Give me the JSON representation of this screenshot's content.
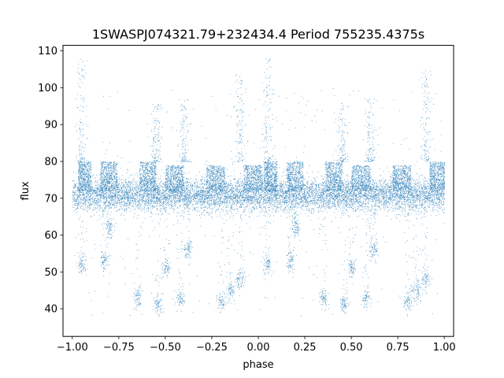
{
  "chart_data": {
    "type": "scatter",
    "title": "1SWASPJ074321.79+232434.4 Period 755235.4375s",
    "xlabel": "phase",
    "ylabel": "flux",
    "xlim": [
      -1.05,
      1.05
    ],
    "ylim": [
      32.5,
      111.5
    ],
    "xticks": [
      -1.0,
      -0.75,
      -0.5,
      -0.25,
      0.0,
      0.25,
      0.5,
      0.75,
      1.0
    ],
    "xtick_labels": [
      "−1.00",
      "−0.75",
      "−0.50",
      "−0.25",
      "0.00",
      "0.25",
      "0.50",
      "0.75",
      "1.00"
    ],
    "yticks": [
      40,
      50,
      60,
      70,
      80,
      90,
      100,
      110
    ],
    "ytick_labels": [
      "40",
      "50",
      "60",
      "70",
      "80",
      "90",
      "100",
      "110"
    ],
    "grid": false,
    "marker_color": "#1f77b4",
    "baseline_flux": 71,
    "data_range_x": [
      -1.0,
      1.0
    ],
    "bright_band_segments": [
      {
        "x": [
          -0.97,
          -0.9
        ],
        "y": [
          72,
          80
        ]
      },
      {
        "x": [
          -0.85,
          -0.76
        ],
        "y": [
          72,
          80
        ]
      },
      {
        "x": [
          -0.64,
          -0.55
        ],
        "y": [
          72,
          80
        ]
      },
      {
        "x": [
          -0.5,
          -0.4
        ],
        "y": [
          72,
          79
        ]
      },
      {
        "x": [
          -0.28,
          -0.18
        ],
        "y": [
          72,
          79
        ]
      },
      {
        "x": [
          -0.08,
          0.02
        ],
        "y": [
          72,
          79
        ]
      },
      {
        "x": [
          0.03,
          0.1
        ],
        "y": [
          72,
          80
        ]
      },
      {
        "x": [
          0.15,
          0.24
        ],
        "y": [
          72,
          80
        ]
      },
      {
        "x": [
          0.36,
          0.45
        ],
        "y": [
          72,
          80
        ]
      },
      {
        "x": [
          0.5,
          0.6
        ],
        "y": [
          72,
          79
        ]
      },
      {
        "x": [
          0.72,
          0.82
        ],
        "y": [
          72,
          79
        ]
      },
      {
        "x": [
          0.92,
          1.0
        ],
        "y": [
          72,
          80
        ]
      }
    ],
    "low_clusters": [
      {
        "x": -0.95,
        "y": 52
      },
      {
        "x": -0.83,
        "y": 53
      },
      {
        "x": -0.8,
        "y": 62
      },
      {
        "x": -0.65,
        "y": 43
      },
      {
        "x": -0.54,
        "y": 41
      },
      {
        "x": -0.5,
        "y": 51
      },
      {
        "x": -0.42,
        "y": 43
      },
      {
        "x": -0.38,
        "y": 56
      },
      {
        "x": -0.2,
        "y": 42
      },
      {
        "x": -0.15,
        "y": 45
      },
      {
        "x": -0.1,
        "y": 48
      },
      {
        "x": 0.05,
        "y": 52
      },
      {
        "x": 0.17,
        "y": 53
      },
      {
        "x": 0.2,
        "y": 62
      },
      {
        "x": 0.35,
        "y": 43
      },
      {
        "x": 0.46,
        "y": 41
      },
      {
        "x": 0.5,
        "y": 51
      },
      {
        "x": 0.58,
        "y": 43
      },
      {
        "x": 0.62,
        "y": 56
      },
      {
        "x": 0.8,
        "y": 42
      },
      {
        "x": 0.85,
        "y": 45
      },
      {
        "x": 0.9,
        "y": 48
      }
    ],
    "spike_columns": [
      {
        "x": -0.95,
        "y": [
          80,
          108
        ]
      },
      {
        "x": -0.55,
        "y": [
          80,
          96
        ]
      },
      {
        "x": -0.4,
        "y": [
          80,
          97
        ]
      },
      {
        "x": -0.1,
        "y": [
          80,
          105
        ]
      },
      {
        "x": 0.05,
        "y": [
          80,
          108
        ]
      },
      {
        "x": 0.45,
        "y": [
          80,
          96
        ]
      },
      {
        "x": 0.6,
        "y": [
          80,
          97
        ]
      },
      {
        "x": 0.9,
        "y": [
          80,
          105
        ]
      }
    ]
  }
}
